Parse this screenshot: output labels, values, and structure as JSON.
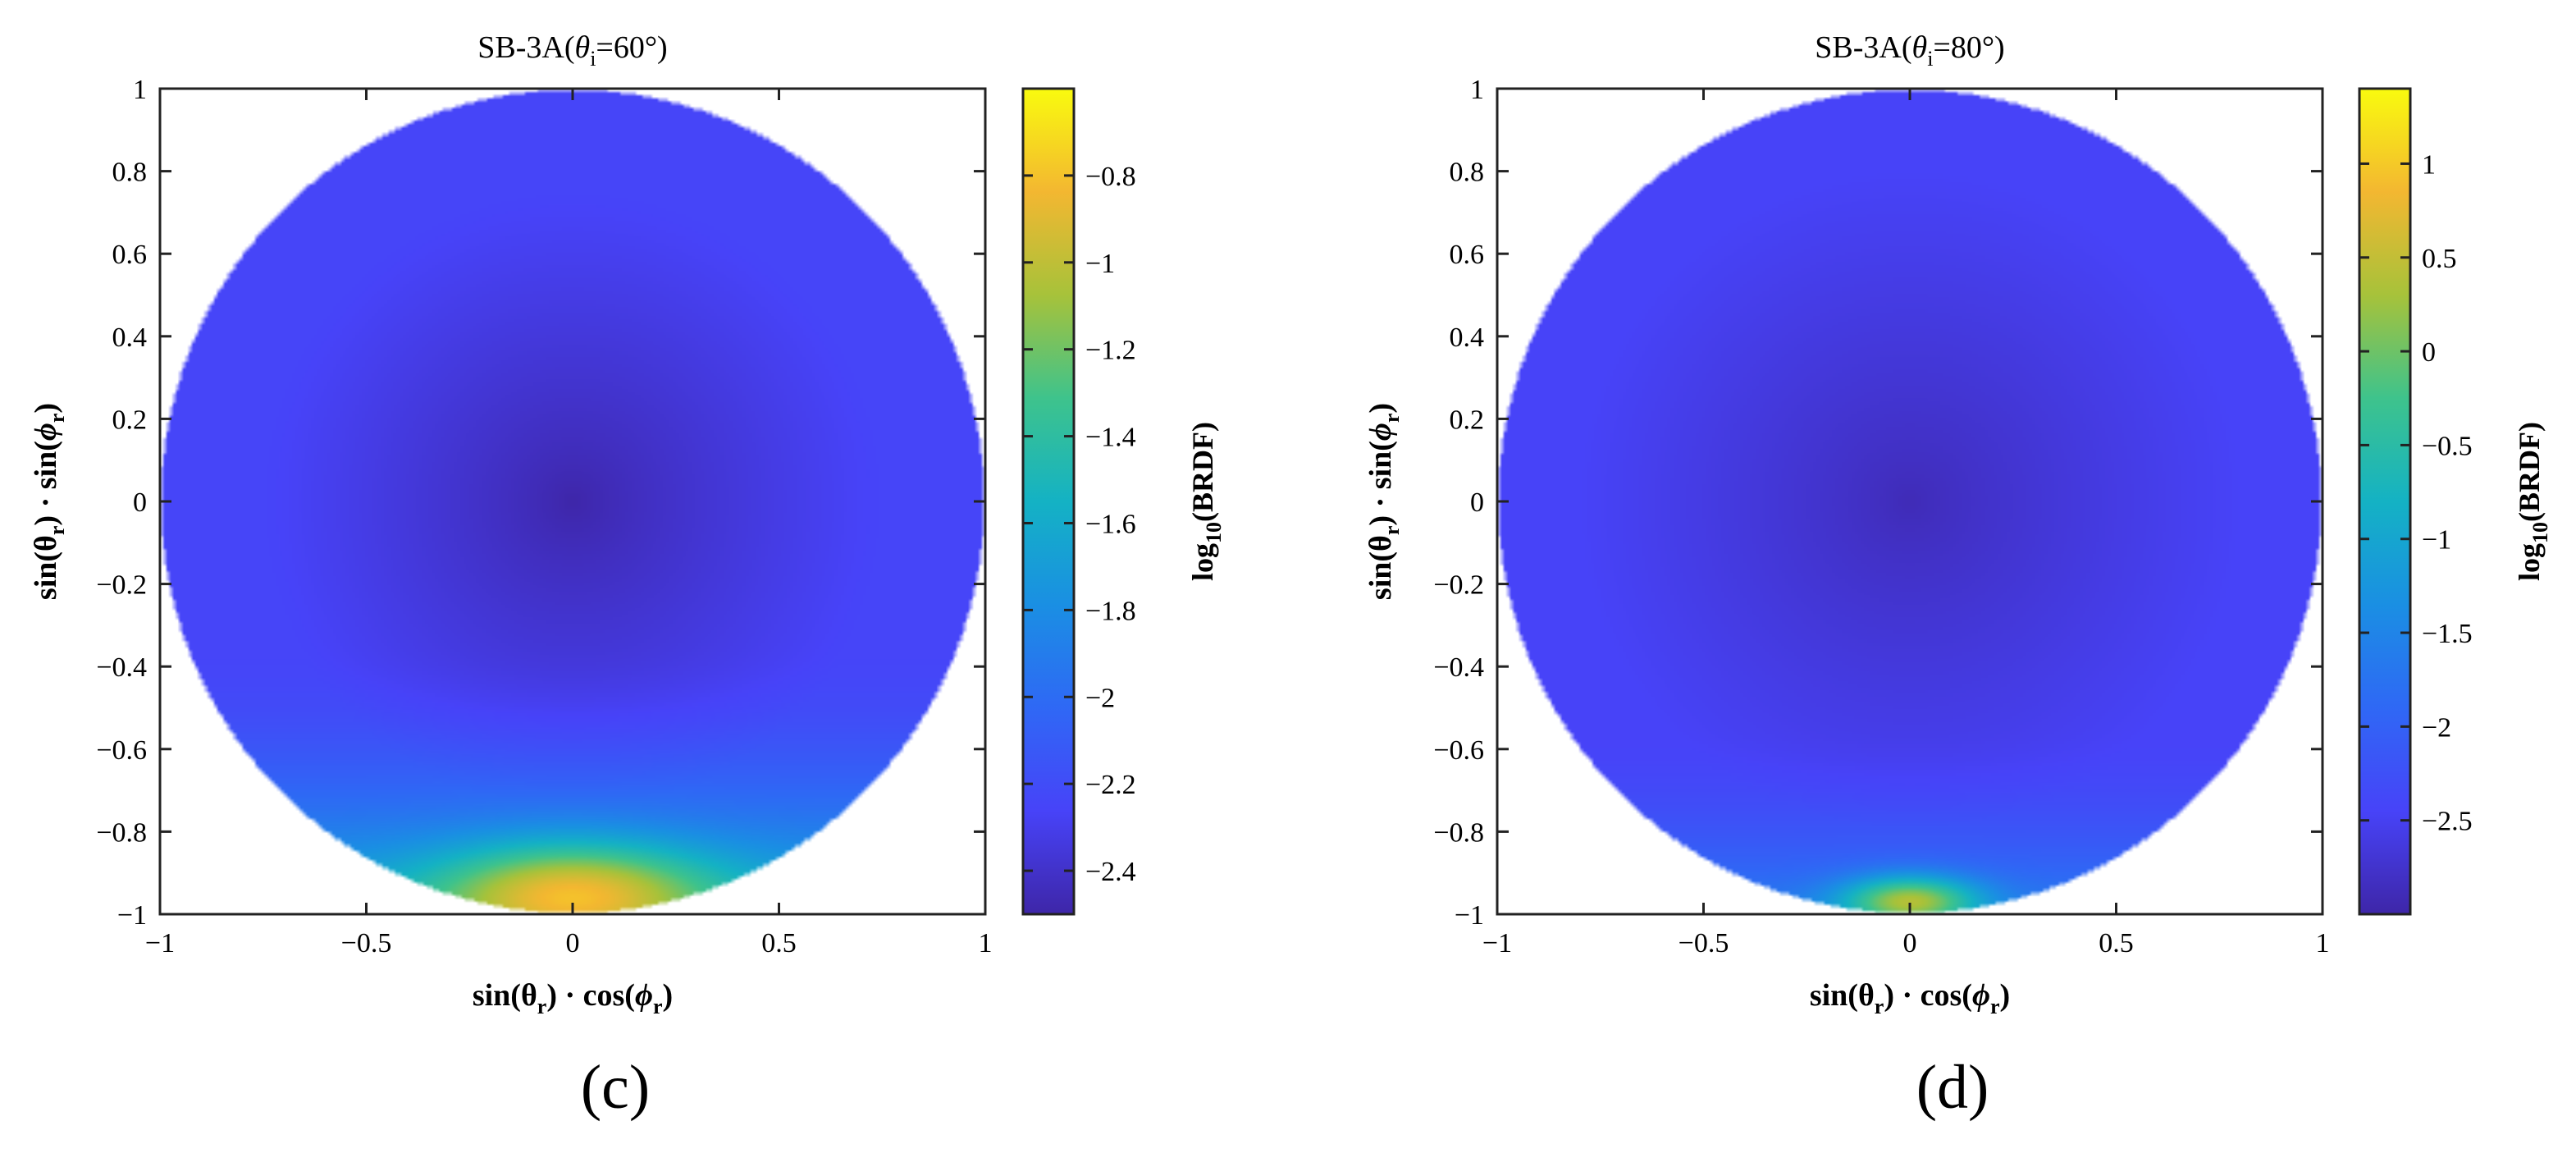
{
  "panels": [
    {
      "id": "c",
      "label": "(c)",
      "title": {
        "text": "SB-3A(",
        "symbol": "θ",
        "sub": "i",
        "rest": "=60°)"
      }
    },
    {
      "id": "d",
      "label": "(d)",
      "title": {
        "text": "SB-3A(",
        "symbol": "θ",
        "sub": "i",
        "rest": "=80°)"
      }
    }
  ],
  "xlabel": {
    "p1": "sin(θ",
    "s1": "r",
    "p2": ") · cos(",
    "p3": "ϕ",
    "s2": "r",
    "p4": ")"
  },
  "ylabel": {
    "p1": "sin(θ",
    "s1": "r",
    "p2": ") · sin(",
    "p3": "ϕ",
    "s2": "r",
    "p4": ")"
  },
  "colorbar_label": {
    "p1": "log",
    "sub": "10",
    "p2": "(BRDF)"
  },
  "colormap": "parula",
  "chart_data": [
    {
      "type": "heatmap",
      "title": "SB-3A(θi=60°)",
      "xlabel": "sin(θr) · cos(ϕr)",
      "ylabel": "sin(θr) · sin(ϕr)",
      "xlim": [
        -1,
        1
      ],
      "ylim": [
        -1,
        1
      ],
      "xticks": [
        -1,
        -0.5,
        0,
        0.5,
        1
      ],
      "xtick_labels": [
        "−1",
        "−0.5",
        "0",
        "0.5",
        "1"
      ],
      "yticks": [
        1,
        0.8,
        0.6,
        0.4,
        0.2,
        0,
        -0.2,
        -0.4,
        -0.6,
        -0.8,
        -1
      ],
      "ytick_labels": [
        "1",
        "0.8",
        "0.6",
        "0.4",
        "0.2",
        "0",
        "−0.2",
        "−0.4",
        "−0.6",
        "−0.8",
        "−1"
      ],
      "colorbar": {
        "label": "log10(BRDF)",
        "range": [
          -2.5,
          -0.6
        ],
        "ticks": [
          -0.8,
          -1,
          -1.2,
          -1.4,
          -1.6,
          -1.8,
          -2,
          -2.2,
          -2.4
        ],
        "tick_labels": [
          "−0.8",
          "−1",
          "−1.2",
          "−1.4",
          "−1.6",
          "−1.8",
          "−2",
          "−2.2",
          "−2.4"
        ]
      },
      "field": {
        "base": -2.25,
        "center_value": -2.5,
        "center_radius": 0.75,
        "peak": [
          0,
          -0.96
        ],
        "peak_value": -0.8,
        "peak_width": 0.24,
        "lower_rise": 0.75,
        "lower_start_y": -0.35
      }
    },
    {
      "type": "heatmap",
      "title": "SB-3A(θi=80°)",
      "xlabel": "sin(θr) · cos(ϕr)",
      "ylabel": "sin(θr) · sin(ϕr)",
      "xlim": [
        -1,
        1
      ],
      "ylim": [
        -1,
        1
      ],
      "xticks": [
        -1,
        -0.5,
        0,
        0.5,
        1
      ],
      "xtick_labels": [
        "−1",
        "−0.5",
        "0",
        "0.5",
        "1"
      ],
      "yticks": [
        1,
        0.8,
        0.6,
        0.4,
        0.2,
        0,
        -0.2,
        -0.4,
        -0.6,
        -0.8,
        -1
      ],
      "ytick_labels": [
        "1",
        "0.8",
        "0.6",
        "0.4",
        "0.2",
        "0",
        "−0.2",
        "−0.4",
        "−0.6",
        "−0.8",
        "−1"
      ],
      "colorbar": {
        "label": "log10(BRDF)",
        "range": [
          -3,
          1.4
        ],
        "ticks": [
          1,
          0.5,
          0,
          -0.5,
          -1,
          -1.5,
          -2,
          -2.5
        ],
        "tick_labels": [
          "1",
          "0.5",
          "0",
          "−0.5",
          "−1",
          "−1.5",
          "−2",
          "−2.5"
        ]
      },
      "field": {
        "base": -2.45,
        "center_value": -2.9,
        "center_radius": 0.8,
        "peak": [
          0,
          -0.97
        ],
        "peak_value": 0.4,
        "peak_width": 0.12,
        "lower_rise": 0.9,
        "lower_start_y": -0.55
      }
    }
  ]
}
